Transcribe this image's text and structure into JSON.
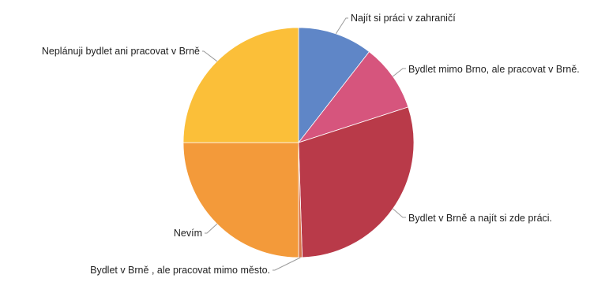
{
  "chart_data": {
    "type": "pie",
    "title": "",
    "start_angle": "12 o'clock",
    "direction": "clockwise",
    "slices": [
      {
        "label": "Najít si práci v zahraničí",
        "value": 10.5,
        "color": "#5f86c7"
      },
      {
        "label": "Bydlet mimo Brno, ale pracovat v Brně.",
        "value": 9.5,
        "color": "#d6557d"
      },
      {
        "label": "Bydlet v Brně a najít si zde práci.",
        "value": 29.5,
        "color": "#b93a49"
      },
      {
        "label": "Bydlet v Brně , ale pracovat mimo město.",
        "value": 0.5,
        "color": "#d8744a"
      },
      {
        "label": "Nevím",
        "value": 25.0,
        "color": "#f39a3a"
      },
      {
        "label": "Neplánuji bydlet ani pracovat v Brně",
        "value": 25.0,
        "color": "#fbbf39"
      }
    ]
  }
}
